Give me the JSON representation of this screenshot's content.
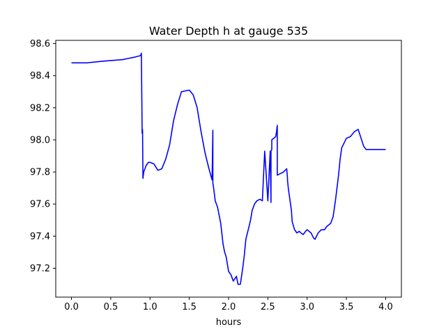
{
  "chart_data": {
    "type": "line",
    "title": "Water Depth h at gauge 535",
    "xlabel": "hours",
    "ylabel": "",
    "xlim": [
      -0.2,
      4.2
    ],
    "ylim": [
      97.02,
      98.62
    ],
    "xticks": [
      0.0,
      0.5,
      1.0,
      1.5,
      2.0,
      2.5,
      3.0,
      3.5,
      4.0
    ],
    "xtick_labels": [
      "0.0",
      "0.5",
      "1.0",
      "1.5",
      "2.0",
      "2.5",
      "3.0",
      "3.5",
      "4.0"
    ],
    "yticks": [
      97.2,
      97.4,
      97.6,
      97.8,
      98.0,
      98.2,
      98.4,
      98.6
    ],
    "ytick_labels": [
      "97.2",
      "97.4",
      "97.6",
      "97.8",
      "98.0",
      "98.2",
      "98.4",
      "98.6"
    ],
    "grid": false,
    "series": [
      {
        "color": "#0000ff",
        "x": [
          0.0,
          0.2,
          0.4,
          0.65,
          0.7,
          0.8,
          0.88,
          0.89,
          0.9,
          0.9,
          0.905,
          0.91,
          0.92,
          0.95,
          0.98,
          1.0,
          1.05,
          1.1,
          1.15,
          1.2,
          1.25,
          1.3,
          1.35,
          1.4,
          1.45,
          1.5,
          1.55,
          1.6,
          1.65,
          1.7,
          1.75,
          1.79,
          1.8,
          1.8,
          1.8,
          1.81,
          1.83,
          1.86,
          1.9,
          1.93,
          1.95,
          1.97,
          2.0,
          2.03,
          2.06,
          2.1,
          2.12,
          2.15,
          2.18,
          2.2,
          2.22,
          2.25,
          2.28,
          2.3,
          2.33,
          2.36,
          2.4,
          2.43,
          2.46,
          2.5,
          2.53,
          2.54,
          2.54,
          2.54,
          2.55,
          2.55,
          2.55,
          2.6,
          2.61,
          2.62,
          2.62,
          2.66,
          2.7,
          2.74,
          2.75,
          2.75,
          2.76,
          2.8,
          2.81,
          2.84,
          2.87,
          2.9,
          2.92,
          2.95,
          2.98,
          3.0,
          3.05,
          3.08,
          3.1,
          3.12,
          3.14,
          3.16,
          3.18,
          3.2,
          3.22,
          3.25,
          3.3,
          3.33,
          3.36,
          3.4,
          3.42,
          3.44,
          3.48,
          3.5,
          3.55,
          3.6,
          3.63,
          3.65,
          3.68,
          3.72,
          3.75,
          3.8,
          3.85,
          3.88,
          3.9,
          3.95,
          4.0
        ],
        "y": [
          98.48,
          98.48,
          98.49,
          98.5,
          98.505,
          98.515,
          98.525,
          98.54,
          98.04,
          98.07,
          98.06,
          97.76,
          97.8,
          97.84,
          97.86,
          97.86,
          97.85,
          97.81,
          97.82,
          97.88,
          97.97,
          98.12,
          98.22,
          98.3,
          98.305,
          98.31,
          98.28,
          98.2,
          98.05,
          97.92,
          97.82,
          97.75,
          98.06,
          97.78,
          97.73,
          97.7,
          97.62,
          97.58,
          97.48,
          97.35,
          97.3,
          97.27,
          97.18,
          97.16,
          97.12,
          97.15,
          97.1,
          97.1,
          97.2,
          97.28,
          97.38,
          97.44,
          97.5,
          97.56,
          97.6,
          97.62,
          97.63,
          97.62,
          97.93,
          97.62,
          97.93,
          97.62,
          97.61,
          97.93,
          97.94,
          97.96,
          98.0,
          98.02,
          98.05,
          98.09,
          97.78,
          97.79,
          97.8,
          97.82,
          97.76,
          97.75,
          97.7,
          97.56,
          97.49,
          97.44,
          97.42,
          97.43,
          97.42,
          97.41,
          97.43,
          97.44,
          97.42,
          97.39,
          97.38,
          97.4,
          97.42,
          97.43,
          97.44,
          97.44,
          97.44,
          97.46,
          97.48,
          97.52,
          97.62,
          97.78,
          97.88,
          97.95,
          97.99,
          98.01,
          98.02,
          98.05,
          98.06,
          98.065,
          98.02,
          97.96,
          97.94,
          97.94,
          97.94,
          97.94,
          97.94,
          97.94,
          97.94
        ]
      }
    ]
  }
}
